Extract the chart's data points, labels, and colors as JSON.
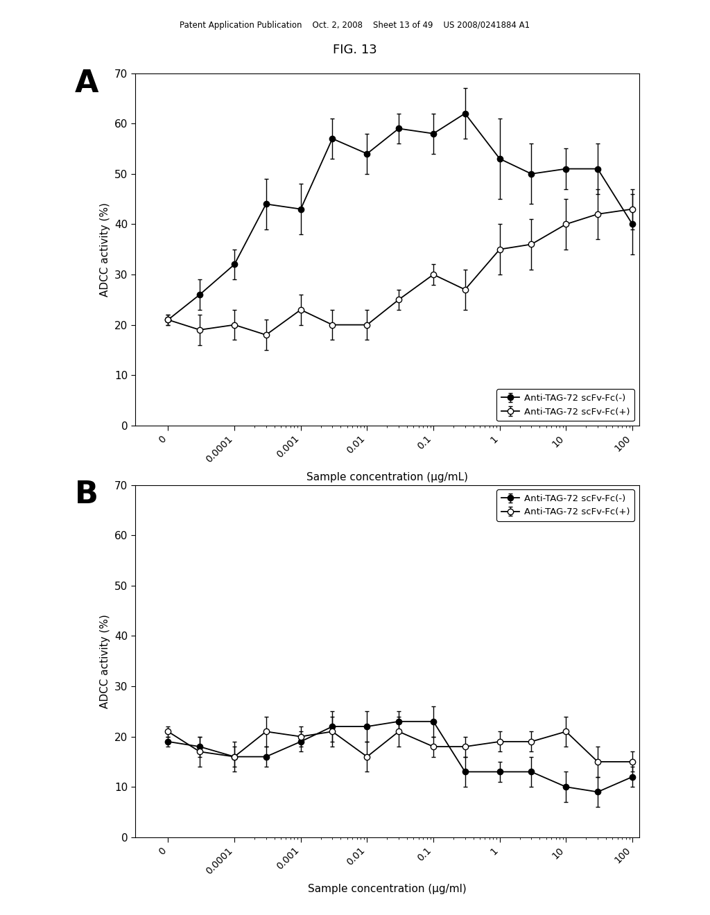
{
  "patent_header": "Patent Application Publication    Oct. 2, 2008    Sheet 13 of 49    US 2008/0241884 A1",
  "fig_title": "FIG. 13",
  "panel_A": {
    "label": "A",
    "xlabel": "Sample concentration (μg/mL)",
    "ylabel": "ADCC activity (%)",
    "ylim": [
      0,
      70
    ],
    "yticks": [
      0,
      10,
      20,
      30,
      40,
      50,
      60,
      70
    ],
    "legend1": "Anti-TAG-72 scFv-Fc(-)",
    "legend2": "Anti-TAG-72 scFv-Fc(+)",
    "legend_loc": "lower right",
    "series1_x": [
      0,
      3e-05,
      0.0001,
      0.0003,
      0.001,
      0.003,
      0.01,
      0.03,
      0.1,
      0.3,
      1,
      3,
      10,
      30,
      100
    ],
    "series1_y": [
      21,
      26,
      32,
      44,
      43,
      57,
      54,
      59,
      58,
      62,
      53,
      50,
      51,
      51,
      40
    ],
    "series1_yerr": [
      1,
      3,
      3,
      5,
      5,
      4,
      4,
      3,
      4,
      5,
      8,
      6,
      4,
      5,
      6
    ],
    "series2_x": [
      0,
      3e-05,
      0.0001,
      0.0003,
      0.001,
      0.003,
      0.01,
      0.03,
      0.1,
      0.3,
      1,
      3,
      10,
      30,
      100
    ],
    "series2_y": [
      21,
      19,
      20,
      18,
      23,
      20,
      20,
      25,
      30,
      27,
      35,
      36,
      40,
      42,
      43
    ],
    "series2_yerr": [
      1,
      3,
      3,
      3,
      3,
      3,
      3,
      2,
      2,
      4,
      5,
      5,
      5,
      5,
      4
    ]
  },
  "panel_B": {
    "label": "B",
    "xlabel": "Sample concentration (μg/ml)",
    "ylabel": "ADCC activity (%)",
    "ylim": [
      0,
      70
    ],
    "yticks": [
      0,
      10,
      20,
      30,
      40,
      50,
      60,
      70
    ],
    "legend1": "Anti-TAG-72 scFv-Fc(-)",
    "legend2": "Anti-TAG-72 scFv-Fc(+)",
    "legend_loc": "upper right",
    "series1_x": [
      0,
      3e-05,
      0.0001,
      0.0003,
      0.001,
      0.003,
      0.01,
      0.03,
      0.1,
      0.3,
      1,
      3,
      10,
      30,
      100
    ],
    "series1_y": [
      19,
      18,
      16,
      16,
      19,
      22,
      22,
      23,
      23,
      13,
      13,
      13,
      10,
      9,
      12
    ],
    "series1_yerr": [
      1,
      2,
      2,
      2,
      2,
      3,
      3,
      2,
      3,
      3,
      2,
      3,
      3,
      3,
      2
    ],
    "series2_x": [
      0,
      3e-05,
      0.0001,
      0.0003,
      0.001,
      0.003,
      0.01,
      0.03,
      0.1,
      0.3,
      1,
      3,
      10,
      30,
      100
    ],
    "series2_y": [
      21,
      17,
      16,
      21,
      20,
      21,
      16,
      21,
      18,
      18,
      19,
      19,
      21,
      15,
      15
    ],
    "series2_yerr": [
      1,
      3,
      3,
      3,
      2,
      3,
      3,
      3,
      2,
      2,
      2,
      2,
      3,
      3,
      2
    ]
  },
  "major_tick_conc": [
    0,
    0.0001,
    0.001,
    0.01,
    0.1,
    1,
    10,
    100
  ],
  "major_tick_labels": [
    "0",
    "0.0001",
    "0.001",
    "0.01",
    "0.1",
    "1",
    "10",
    "100"
  ],
  "zero_x_pos": -5.0,
  "xlim": [
    -5.5,
    2.1
  ]
}
